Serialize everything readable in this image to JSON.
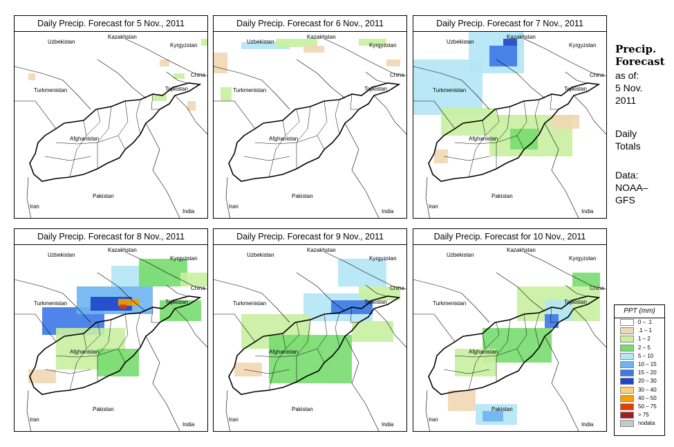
{
  "panels": [
    {
      "title": "Daily Precip. Forecast for  5 Nov., 2011"
    },
    {
      "title": "Daily Precip. Forecast for  6 Nov., 2011"
    },
    {
      "title": "Daily Precip. Forecast for  7 Nov., 2011"
    },
    {
      "title": "Daily Precip. Forecast for  8 Nov., 2011"
    },
    {
      "title": "Daily Precip. Forecast for  9 Nov., 2011"
    },
    {
      "title": "Daily Precip. Forecast for  10 Nov., 2011"
    }
  ],
  "countries": {
    "kazakhstan": "Kazakhstan",
    "uzbekistan": "Uzbekistan",
    "kyrgyzstan": "Kyrgyzstan",
    "china": "China",
    "turkmenistan": "Turkmenistan",
    "tajikistan": "Tajikistan",
    "afghanistan": "Afghanistan",
    "pakistan": "Pakistan",
    "iran": "Iran",
    "india": "India"
  },
  "sidebar": {
    "title_line1": "Precip.",
    "title_line2": "Forecast",
    "asof_line1": "as of:",
    "asof_line2": "5 Nov.",
    "asof_line3": "2011",
    "daily_line1": "Daily",
    "daily_line2": "Totals",
    "source_line1": "Data:",
    "source_line2": "NOAA–",
    "source_line3": "GFS"
  },
  "legend": {
    "title": "PPT (mm)",
    "items": [
      {
        "label": "0 – .1",
        "color": "#ffffff"
      },
      {
        "label": ".1 – 1",
        "color": "#f0d7b4"
      },
      {
        "label": "1 – 2",
        "color": "#c8f0a0"
      },
      {
        "label": "2 – 5",
        "color": "#78dc6e"
      },
      {
        "label": "5 – 10",
        "color": "#b4e6f5"
      },
      {
        "label": "10 – 15",
        "color": "#6eb4f0"
      },
      {
        "label": "15 – 20",
        "color": "#3c78e6"
      },
      {
        "label": "20 – 30",
        "color": "#1e46c8"
      },
      {
        "label": "30 – 40",
        "color": "#f5d278"
      },
      {
        "label": "40 – 50",
        "color": "#f5a000"
      },
      {
        "label": "50 – 75",
        "color": "#e63c00"
      },
      {
        "label": "> 75",
        "color": "#a01e1e"
      },
      {
        "label": "nodata",
        "color": "#c8c8c8"
      }
    ]
  }
}
